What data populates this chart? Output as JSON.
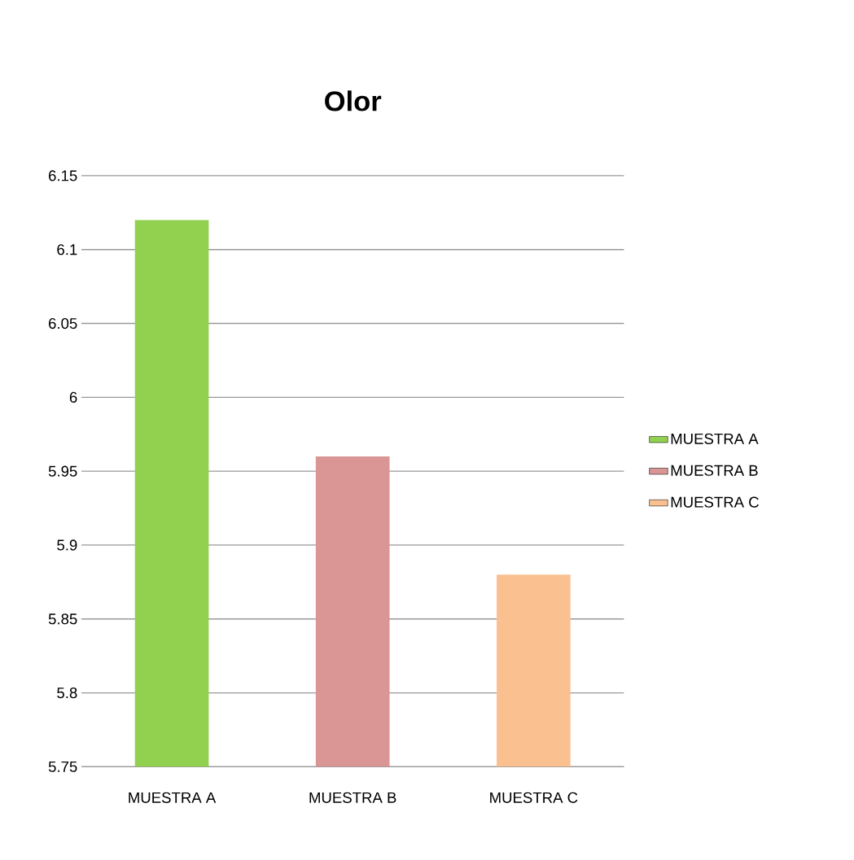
{
  "chart_data": {
    "type": "bar",
    "title": "Olor",
    "categories": [
      "MUESTRA A",
      "MUESTRA B",
      "MUESTRA C"
    ],
    "series": [
      {
        "name": "MUESTRA A",
        "color": "#92d050",
        "values": [
          6.12,
          null,
          null
        ]
      },
      {
        "name": "MUESTRA B",
        "color": "#d99694",
        "values": [
          null,
          5.96,
          null
        ]
      },
      {
        "name": "MUESTRA C",
        "color": "#fac090",
        "values": [
          null,
          null,
          5.88
        ]
      }
    ],
    "ylim": [
      5.75,
      6.15
    ],
    "yticks": [
      5.75,
      5.8,
      5.85,
      5.9,
      5.95,
      6,
      6.05,
      6.1,
      6.15
    ],
    "grid": "y",
    "legend": "right"
  }
}
